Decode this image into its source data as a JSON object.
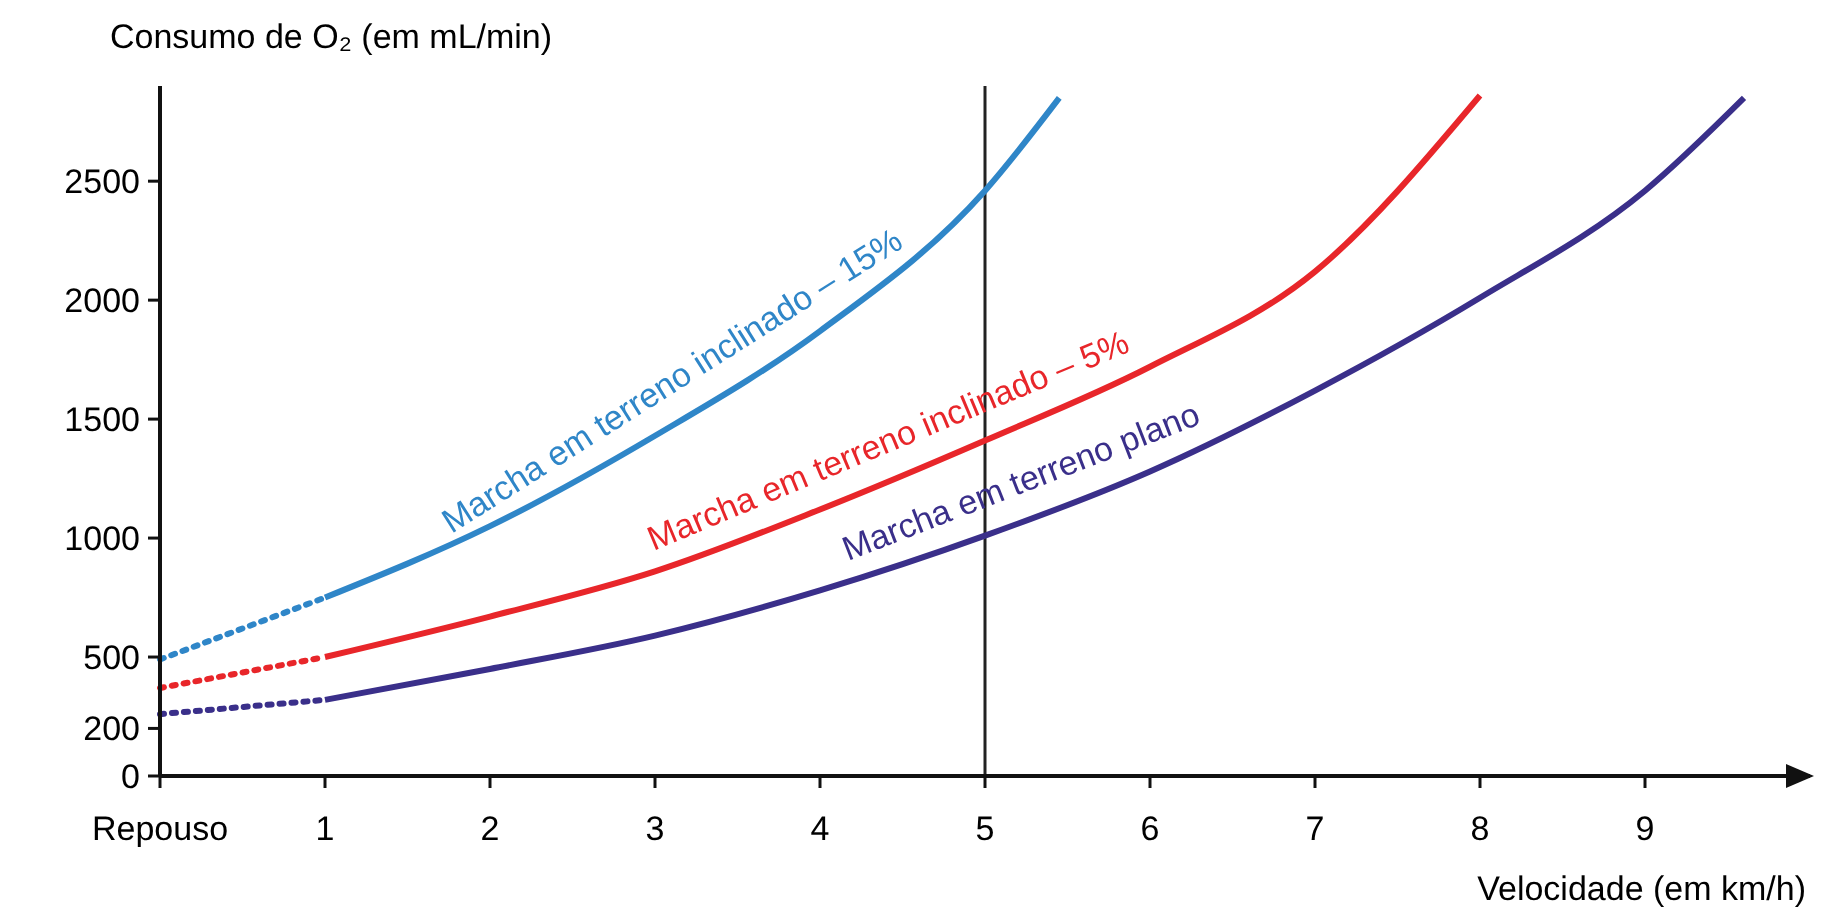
{
  "chart_data": {
    "type": "line",
    "xlabel": "Velocidade (em km/h)",
    "ylabel": "Consumo de O₂ (em mL/min)",
    "xlim": [
      0,
      10
    ],
    "ylim": [
      0,
      2900
    ],
    "xticks": [
      {
        "value": 0,
        "label": "Repouso"
      },
      1,
      2,
      3,
      4,
      5,
      6,
      7,
      8,
      9
    ],
    "yticks": [
      0,
      200,
      500,
      1000,
      1500,
      2000,
      2500
    ],
    "grid": false,
    "ref_lines": [
      {
        "axis": "x",
        "value": 5,
        "color": "#222222",
        "line_style": "solid"
      }
    ],
    "series": [
      {
        "name": "Marcha em terreno inclinado – 15%",
        "color": "#2f86c8",
        "line_style": "solid",
        "x": [
          1,
          2,
          3,
          4,
          5,
          5.45
        ],
        "values": [
          750,
          1050,
          1430,
          1870,
          2460,
          2850
        ]
      },
      {
        "name": "Marcha em terreno inclinado – 5%",
        "color": "#e8262a",
        "line_style": "solid",
        "x": [
          1,
          2,
          3,
          4,
          5,
          6,
          7,
          8
        ],
        "values": [
          500,
          670,
          860,
          1120,
          1410,
          1720,
          2120,
          2860
        ]
      },
      {
        "name": "Marcha em terreno plano",
        "color": "#3a2f8a",
        "line_style": "solid",
        "x": [
          1,
          2,
          3,
          4,
          5,
          6,
          7,
          8,
          9,
          9.6
        ],
        "values": [
          320,
          450,
          590,
          780,
          1010,
          1280,
          1620,
          2010,
          2460,
          2850
        ]
      },
      {
        "color": "#2f86c8",
        "line_style": "dotted",
        "x": [
          0,
          1
        ],
        "values": [
          490,
          750
        ]
      },
      {
        "color": "#e8262a",
        "line_style": "dotted",
        "x": [
          0,
          1
        ],
        "values": [
          370,
          500
        ]
      },
      {
        "color": "#3a2f8a",
        "line_style": "dotted",
        "x": [
          0,
          1
        ],
        "values": [
          260,
          320
        ]
      }
    ]
  }
}
